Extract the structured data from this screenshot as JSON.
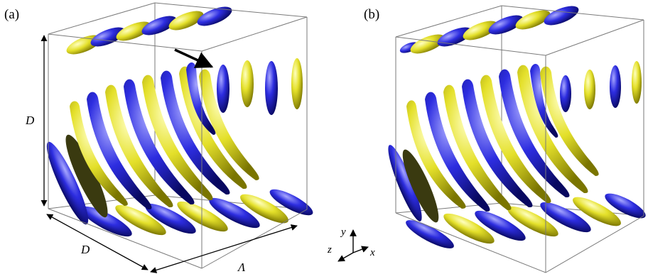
{
  "panels": [
    {
      "label": "(a)"
    },
    {
      "label": "(b)"
    }
  ],
  "dimensions": {
    "height": "D",
    "depth": "D",
    "length": "Λ"
  },
  "axes": {
    "x": "x",
    "y": "y",
    "z": "z"
  },
  "colors": {
    "yellow": "#d9d61a",
    "blue": "#2a2ad0",
    "box": "#7a7a7a"
  }
}
